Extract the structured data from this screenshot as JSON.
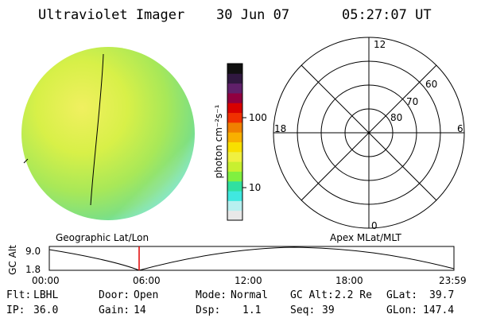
{
  "header": {
    "title": "Ultraviolet Imager",
    "date": "30 Jun 07",
    "time": "05:27:07 UT"
  },
  "colorbar": {
    "unit_label": "photon cm⁻²s⁻¹",
    "tick_labels": [
      "100",
      "10"
    ],
    "colors": [
      "#e8e8e8",
      "#b8f0f0",
      "#40e8e0",
      "#30e0a0",
      "#80f040",
      "#c8f030",
      "#f0f040",
      "#f8e000",
      "#f8b000",
      "#f08000",
      "#f03000",
      "#d80000",
      "#900040",
      "#60206a",
      "#301840",
      "#101010"
    ]
  },
  "polar_plot": {
    "mlt_labels": [
      "12",
      "18",
      "6",
      "0"
    ],
    "lat_labels": [
      "60",
      "70",
      "80"
    ]
  },
  "orbit_panel": {
    "left_title": "Geographic Lat/Lon",
    "right_title": "Apex MLat/MLT",
    "y_axis_label": "GC Alt",
    "y_max": "9.0",
    "y_min": "1.8",
    "x_labels": [
      "00:00",
      "06:00",
      "12:00",
      "18:00",
      "23:59"
    ],
    "current_marker_color": "#e00000"
  },
  "status": {
    "flt_label": "Flt:",
    "flt_value": "LBHL",
    "ip_label": "IP:",
    "ip_value": "36.0",
    "door_label": "Door:",
    "door_value": "Open",
    "gain_label": "Gain:",
    "gain_value": "14",
    "mode_label": "Mode:",
    "mode_value": "Normal",
    "dsp_label": "Dsp:",
    "dsp_value": "1.1",
    "gcalt_label": "GC Alt:",
    "gcalt_value": "2.2 Re",
    "seq_label": "Seq:",
    "seq_value": "39",
    "glat_label": "GLat:",
    "glat_value": "39.7",
    "glon_label": "GLon:",
    "glon_value": "147.4"
  }
}
